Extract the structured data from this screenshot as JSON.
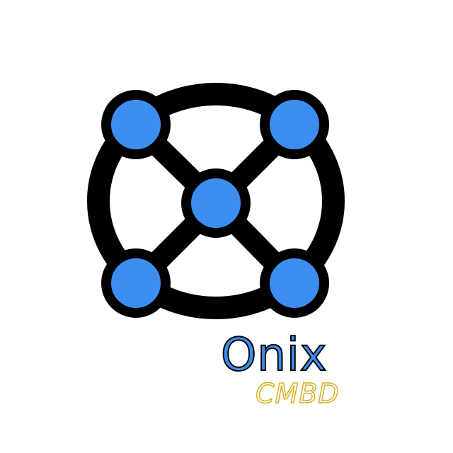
{
  "brand": {
    "name": "Onix",
    "subtitle": "CMBD"
  },
  "colors": {
    "background": "#ffffff",
    "node_fill": "#3c8ff1",
    "outline": "#000000",
    "wordmark": "#3c8ff1",
    "subtitle_outline": "#d7ac1a"
  },
  "icons": {
    "mark": "network-node-icon"
  }
}
